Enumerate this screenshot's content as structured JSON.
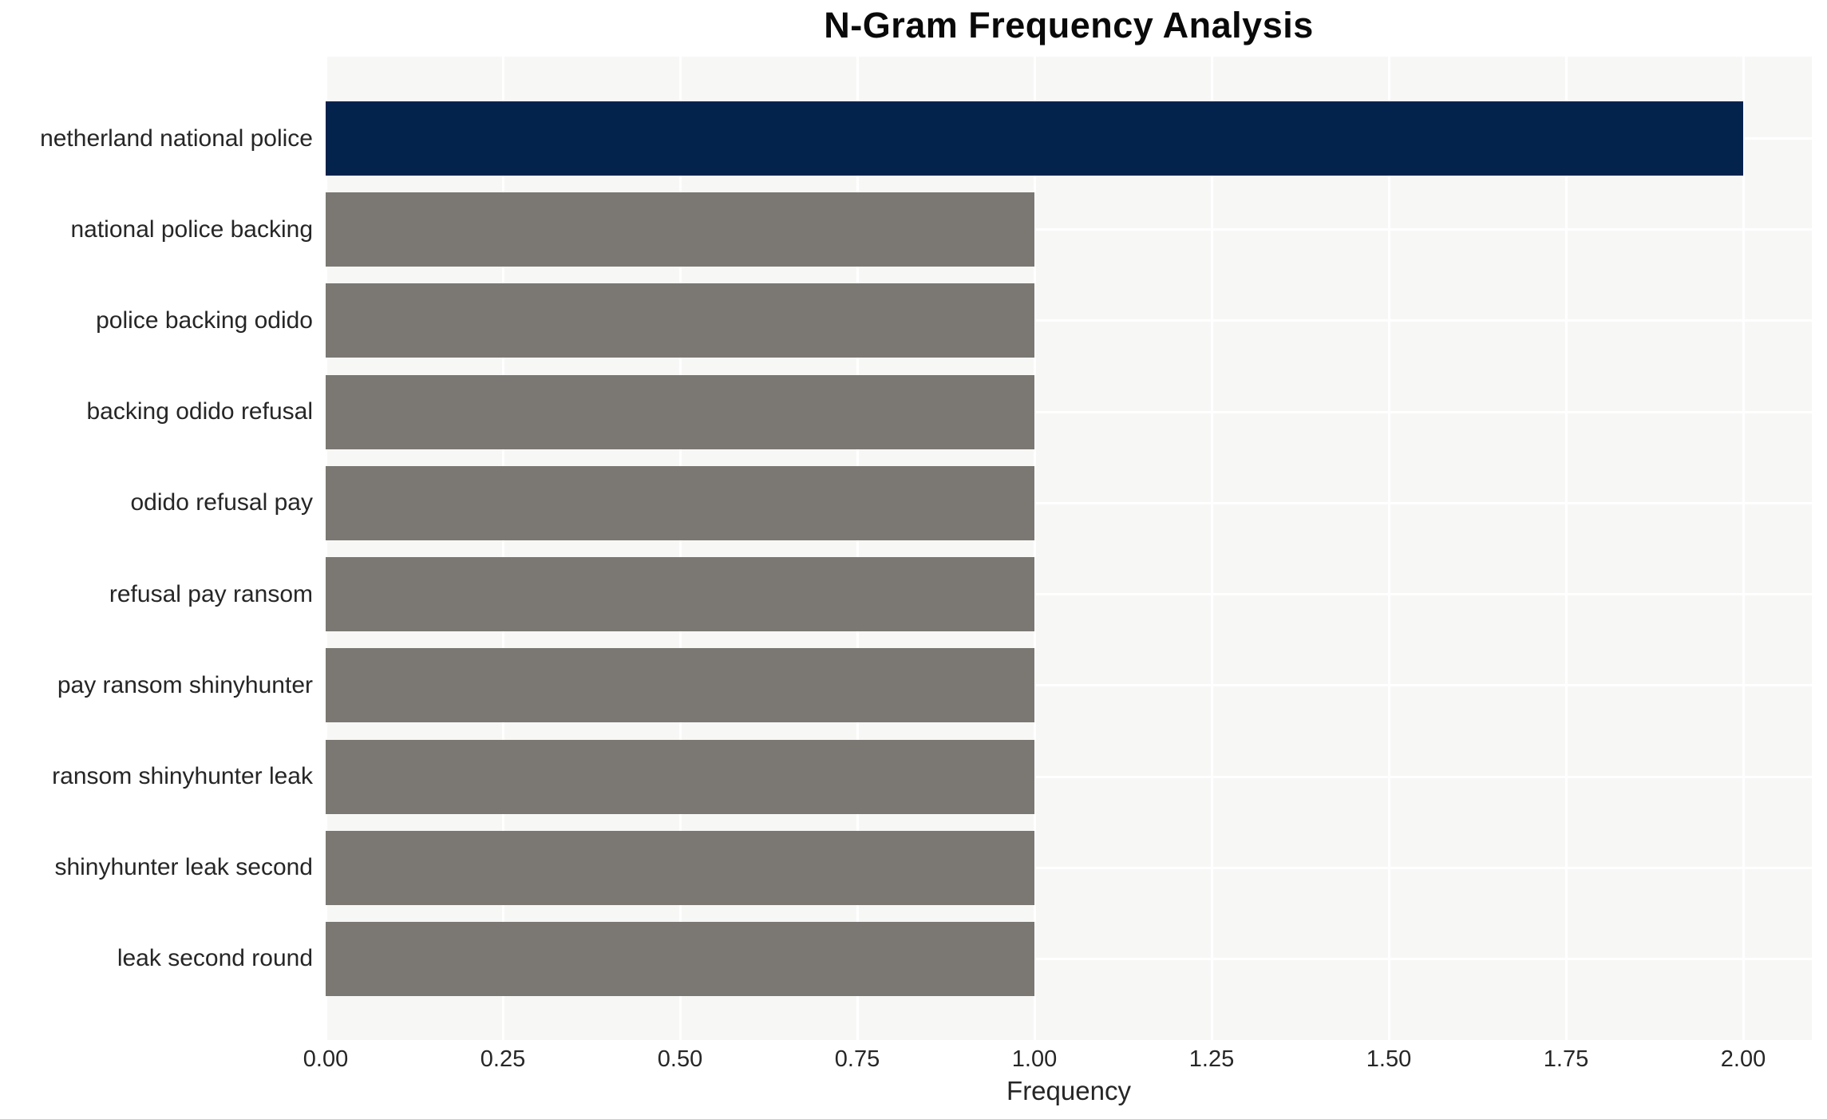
{
  "chart_data": {
    "type": "bar",
    "orientation": "horizontal",
    "title": "N-Gram Frequency Analysis",
    "xlabel": "Frequency",
    "ylabel": "",
    "categories": [
      "netherland national police",
      "national police backing",
      "police backing odido",
      "backing odido refusal",
      "odido refusal pay",
      "refusal pay ransom",
      "pay ransom shinyhunter",
      "ransom shinyhunter leak",
      "shinyhunter leak second",
      "leak second round"
    ],
    "values": [
      2,
      1,
      1,
      1,
      1,
      1,
      1,
      1,
      1,
      1
    ],
    "x_ticks": [
      0.0,
      0.25,
      0.5,
      0.75,
      1.0,
      1.25,
      1.5,
      1.75,
      2.0
    ],
    "x_tick_labels": [
      "0.00",
      "0.25",
      "0.50",
      "0.75",
      "1.00",
      "1.25",
      "1.50",
      "1.75",
      "2.00"
    ],
    "xlim": [
      0,
      2.1
    ],
    "grid": true,
    "legend": null,
    "colors": {
      "highlight_bar": "#03234d",
      "default_bar": "#7b7873",
      "plot_background": "#f7f7f6",
      "grid_line": "#ffffff",
      "text": "#262626",
      "title_text": "#0a0a0a",
      "page_background": "#ffffff"
    }
  }
}
